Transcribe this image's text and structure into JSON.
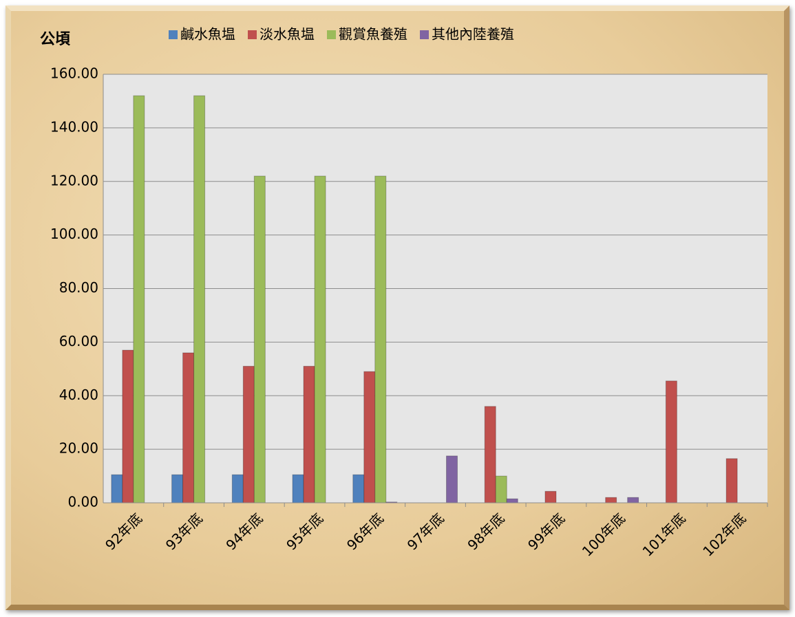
{
  "chart_data": {
    "type": "bar",
    "y_label": "公頃",
    "categories": [
      "92年底",
      "93年底",
      "94年底",
      "95年底",
      "96年底",
      "97年底",
      "98年底",
      "99年底",
      "100年底",
      "101年底",
      "102年底"
    ],
    "series": [
      {
        "name": "鹹水魚塭",
        "color": "#4f81bd",
        "values": [
          10.5,
          10.5,
          10.5,
          10.5,
          10.5,
          0,
          0,
          0,
          0,
          0,
          0
        ]
      },
      {
        "name": "淡水魚塭",
        "color": "#c0504d",
        "values": [
          57,
          56,
          51,
          51,
          49,
          0,
          36,
          4.3,
          2,
          45.5,
          16.5
        ]
      },
      {
        "name": "觀賞魚養殖",
        "color": "#9bbb59",
        "values": [
          152,
          152,
          122,
          122,
          122,
          0,
          10,
          0,
          0,
          0,
          0
        ]
      },
      {
        "name": "其他內陸養殖",
        "color": "#8064a2",
        "values": [
          0,
          0,
          0,
          0,
          0.3,
          17.5,
          1.5,
          0,
          2,
          0,
          0
        ]
      }
    ],
    "ylim": [
      0,
      160
    ],
    "yticks": [
      {
        "value": 0,
        "label": "0.00"
      },
      {
        "value": 20,
        "label": "20.00"
      },
      {
        "value": 40,
        "label": "40.00"
      },
      {
        "value": 60,
        "label": "60.00"
      },
      {
        "value": 80,
        "label": "80.00"
      },
      {
        "value": 100,
        "label": "100.00"
      },
      {
        "value": 120,
        "label": "120.00"
      },
      {
        "value": 140,
        "label": "140.00"
      },
      {
        "value": 160,
        "label": "160.00"
      }
    ],
    "grid": true,
    "legend": "top"
  }
}
